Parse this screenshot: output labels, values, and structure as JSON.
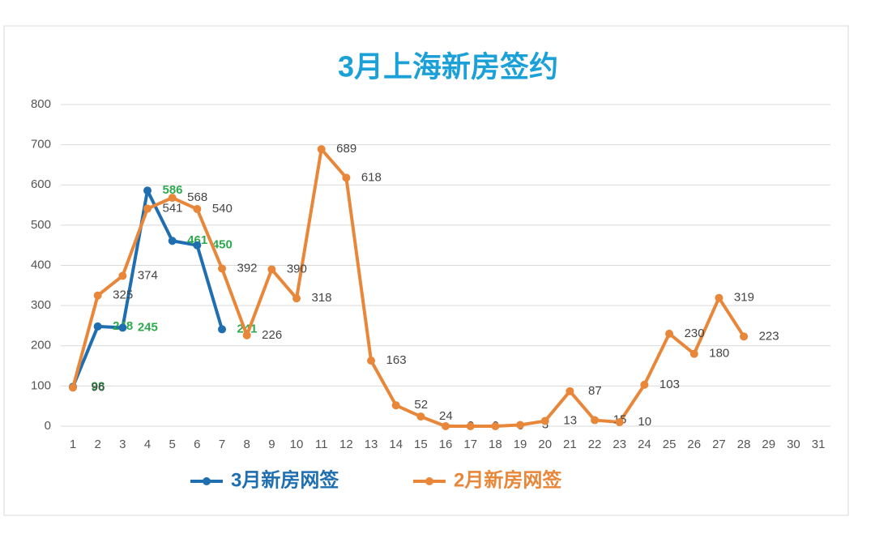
{
  "chart_data": {
    "type": "line",
    "title": "3月上海新房签约",
    "categories": [
      "1",
      "2",
      "3",
      "4",
      "5",
      "6",
      "7",
      "8",
      "9",
      "10",
      "11",
      "12",
      "13",
      "14",
      "15",
      "16",
      "17",
      "18",
      "19",
      "20",
      "21",
      "22",
      "23",
      "24",
      "25",
      "26",
      "27",
      "28",
      "29",
      "30",
      "31"
    ],
    "series": [
      {
        "name": "3月新房网签",
        "color": "#1f6fb0",
        "label_color": "#2daa4e",
        "values": [
          98,
          248,
          245,
          586,
          461,
          450,
          241,
          null,
          null,
          null,
          null,
          null,
          null,
          null,
          null,
          null,
          null,
          null,
          null,
          null,
          null,
          null,
          null,
          null,
          null,
          null,
          null,
          null,
          null,
          null,
          null
        ]
      },
      {
        "name": "2月新房网签",
        "color": "#e8873a",
        "label_color": "#444444",
        "values": [
          96,
          325,
          374,
          541,
          568,
          540,
          392,
          226,
          390,
          318,
          689,
          618,
          163,
          52,
          24,
          0,
          0,
          0,
          3,
          13,
          87,
          15,
          10,
          103,
          230,
          180,
          319,
          223,
          null,
          null,
          null
        ]
      }
    ],
    "ylim": [
      0,
      800
    ],
    "yticks": [
      0,
      100,
      200,
      300,
      400,
      500,
      600,
      700,
      800
    ],
    "grid": true,
    "legend": "bottom"
  }
}
